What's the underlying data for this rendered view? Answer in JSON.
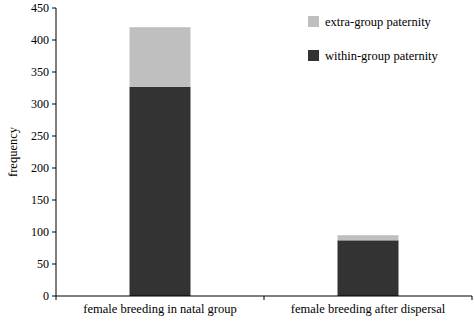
{
  "chart_data": {
    "type": "bar",
    "stacked": true,
    "y_label": "frequency",
    "categories": [
      "female breeding in natal group",
      "female breeding after dispersal"
    ],
    "series": [
      {
        "name": "within-group paternity",
        "color": "#333333",
        "values": [
          327,
          87
        ]
      },
      {
        "name": "extra-group paternity",
        "color": "#bfbfbf",
        "values": [
          93,
          8
        ]
      }
    ],
    "ylim": [
      0,
      450
    ],
    "yticks": [
      0,
      50,
      100,
      150,
      200,
      250,
      300,
      350,
      400,
      450
    ],
    "legend": "upper-right",
    "grid": false
  }
}
